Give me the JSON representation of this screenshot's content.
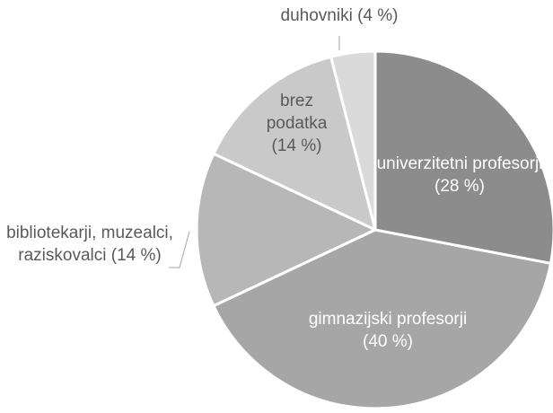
{
  "chart_data": {
    "type": "pie",
    "categories": [
      "univerzitetni profesorji",
      "gimnazijski profesorji",
      "bibliotekarji, muzealci, raziskovalci",
      "brez podatka",
      "duhovniki"
    ],
    "values": [
      28,
      40,
      14,
      14,
      4
    ],
    "value_labels": [
      "(28 %)",
      "(40 %)",
      "(14 %)",
      "(14 %)",
      "(4 %)"
    ],
    "colors": [
      "#8c8c8c",
      "#a6a6a6",
      "#b7b7b7",
      "#c9c9c9",
      "#dadada"
    ]
  }
}
